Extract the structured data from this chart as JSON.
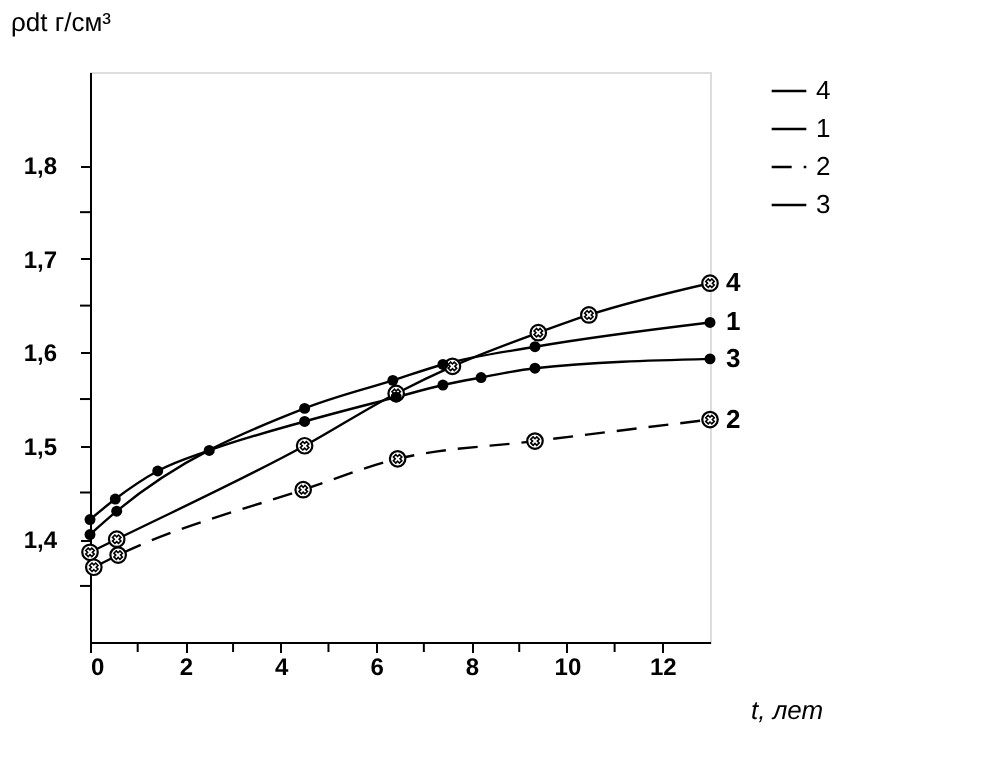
{
  "chart_data": {
    "type": "line",
    "ylabel": "ρdt г/см³",
    "xlabel": "t, лет",
    "xlim": [
      0,
      13
    ],
    "ylim": [
      1.29,
      1.9
    ],
    "xticks": [
      0,
      {
        "value": 1,
        "label": null
      },
      2,
      {
        "value": 3,
        "label": null
      },
      4,
      {
        "value": 5,
        "label": null
      },
      6,
      {
        "value": 7,
        "label": null
      },
      8,
      {
        "value": 9,
        "label": null
      },
      10,
      {
        "value": 11,
        "label": null
      },
      12
    ],
    "yticks": [
      {
        "value": 1.35,
        "label": null
      },
      {
        "value": 1.4,
        "label": "1,4"
      },
      {
        "value": 1.45,
        "label": null
      },
      {
        "value": 1.5,
        "label": "1,5"
      },
      {
        "value": 1.55,
        "label": null
      },
      {
        "value": 1.6,
        "label": "1,6"
      },
      {
        "value": 1.65,
        "label": null
      },
      {
        "value": 1.7,
        "label": "1,7"
      },
      {
        "value": 1.75,
        "label": null
      },
      {
        "value": 1.8,
        "label": "1,8"
      }
    ],
    "grid": false,
    "legend": "top right",
    "series": [
      {
        "name": "4",
        "color": "#000000",
        "marker": "cross",
        "line_style": "solid",
        "x": [
          0,
          0.56,
          4.5,
          6.42,
          7.6,
          9.4,
          10.46,
          13
        ],
        "values": [
          1.386,
          1.4,
          1.5,
          1.556,
          1.585,
          1.621,
          1.64,
          1.674
        ]
      },
      {
        "name": "1",
        "color": "#000000",
        "marker": "circle",
        "line_style": "solid",
        "x": [
          0,
          0.56,
          4.5,
          6.35,
          7.4,
          9.33,
          13
        ],
        "values": [
          1.405,
          1.43,
          1.54,
          1.57,
          1.587,
          1.606,
          1.632
        ]
      },
      {
        "name": "2",
        "color": "#000000",
        "marker": "cross",
        "line_style": "dashed",
        "x": [
          0.08,
          0.59,
          4.47,
          6.45,
          9.33,
          13
        ],
        "values": [
          1.37,
          1.383,
          1.453,
          1.486,
          1.505,
          1.528
        ]
      },
      {
        "name": "3",
        "color": "#000000",
        "marker": "circle",
        "line_style": "solid",
        "x": [
          0,
          0.53,
          1.42,
          2.5,
          4.5,
          6.42,
          7.4,
          8.2,
          9.33,
          13
        ],
        "values": [
          1.421,
          1.443,
          1.473,
          1.495,
          1.526,
          1.552,
          1.565,
          1.573,
          1.583,
          1.593
        ]
      }
    ]
  }
}
